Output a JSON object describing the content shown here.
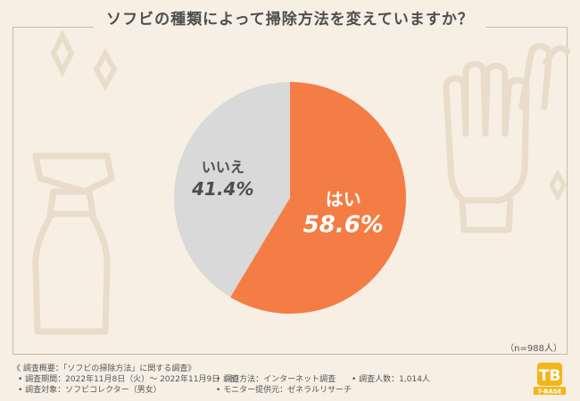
{
  "title": "ソフビの種類によって掃除方法を変えていますか？",
  "n_label": "（n=988人）",
  "chart_data": {
    "type": "pie",
    "title": "ソフビの種類によって掃除方法を変えていますか？",
    "categories": [
      "はい",
      "いいえ"
    ],
    "values": [
      58.6,
      41.4
    ],
    "value_labels": [
      "58.6%",
      "41.4%"
    ],
    "colors": [
      "#f47c45",
      "#d9d9d9"
    ],
    "label_colors": [
      "#ffffff",
      "#4d4d4d"
    ],
    "start_angle_deg": 0,
    "direction": "clockwise"
  },
  "notes": {
    "heading": "《 調査概要：「ソフビの掃除方法」に関する調査》",
    "period": "• 調査期間：2022年11月8日（火）～ 2022年11月9日（水）",
    "method": "• 調査方法：インターネット調査",
    "count": "• 調査人数：1,014人",
    "target": "• 調査対象：ソフビコレクター（男女）",
    "provider": "• モニター提供元：ゼネラルリサーチ"
  },
  "logo": {
    "letters": "TB",
    "text": "T-BASE"
  },
  "colors": {
    "background": "#f7efe4",
    "accent": "#f47c45",
    "logo": "#f2b61a"
  }
}
